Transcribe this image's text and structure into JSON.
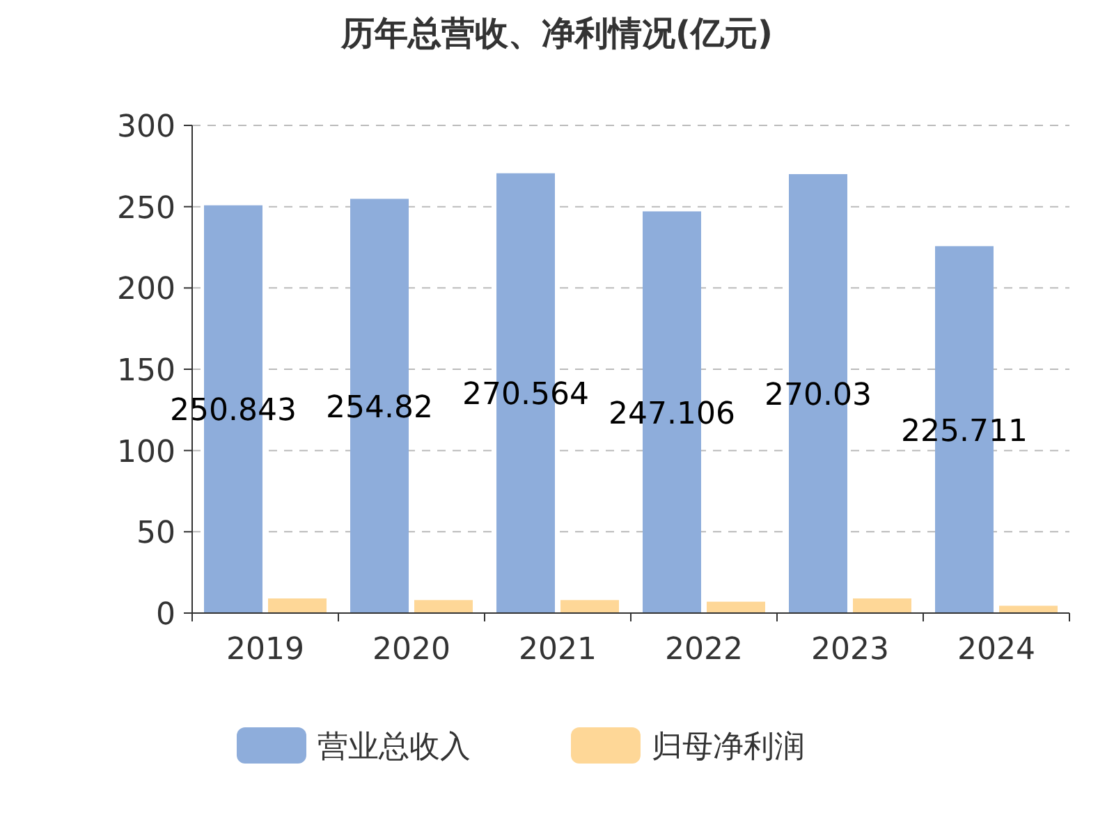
{
  "chart_data": {
    "type": "bar",
    "title": "历年总营收、净利情况(亿元)",
    "categories": [
      "2019",
      "2020",
      "2021",
      "2022",
      "2023",
      "2024"
    ],
    "series": [
      {
        "name": "营业总收入",
        "color": "#8eaddb",
        "values": [
          250.843,
          254.82,
          270.564,
          247.106,
          270.03,
          225.711
        ],
        "value_labels": [
          "250.843",
          "254.82",
          "270.564",
          "247.106",
          "270.03",
          "225.711"
        ]
      },
      {
        "name": "归母净利润",
        "color": "#fed797",
        "values": [
          9,
          8,
          8,
          7,
          9,
          4.5
        ]
      }
    ],
    "ylim": [
      0,
      300
    ],
    "yticks": [
      0,
      50,
      100,
      150,
      200,
      250,
      300
    ],
    "grid": "y",
    "legend": "bottom"
  }
}
